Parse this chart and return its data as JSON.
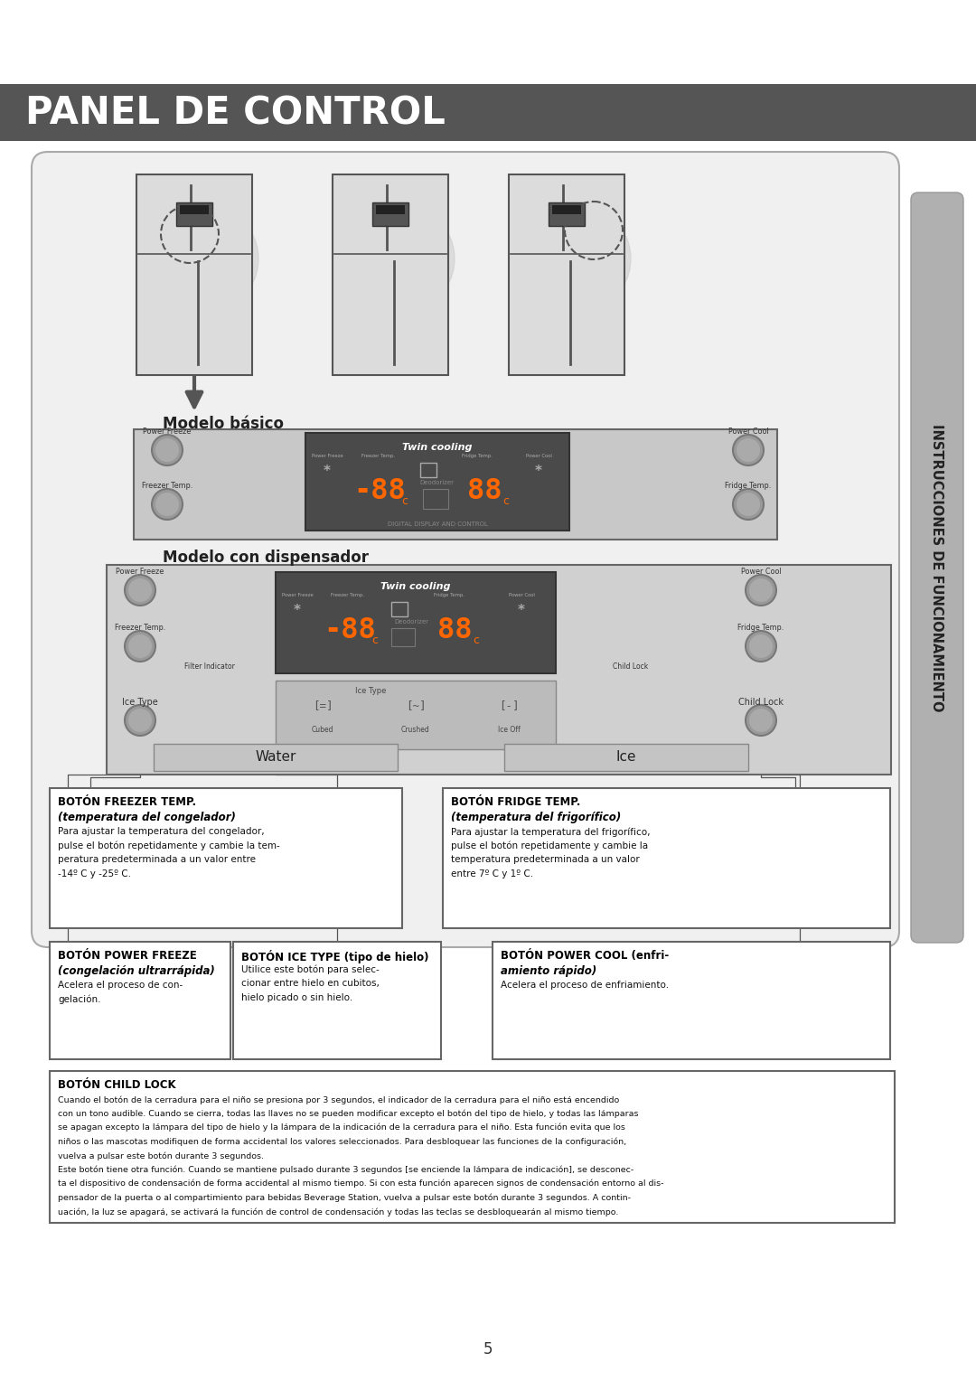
{
  "title": "PANEL DE CONTROL",
  "title_bg": "#555555",
  "title_color": "#ffffff",
  "page_bg": "#ffffff",
  "sidebar_text": "INSTRUCCIONES DE FUNCIONAMIENTO",
  "sidebar_bg": "#aaaaaa",
  "section1_label": "Modelo básico",
  "section2_label": "Modelo con dispensador",
  "twin_cooling_label": "Twin cooling",
  "digital_label": "DIGITAL DISPLAY AND CONTROL",
  "water_label": "Water",
  "ice_label": "Ice",
  "box1_title": "BOTÓN FREEZER TEMP.",
  "box1_subtitle": "(temperatura del congelador)",
  "box1_lines": [
    "Para ajustar la temperatura del congelador,",
    "pulse el botón repetidamente y cambie la tem-",
    "peratura predeterminada a un valor entre",
    "-14º C y -25º C."
  ],
  "box2_title": "BOTÓN FRIDGE TEMP.",
  "box2_subtitle": "(temperatura del frigorífico)",
  "box2_lines": [
    "Para ajustar la temperatura del frigorífico,",
    "pulse el botón repetidamente y cambie la",
    "temperatura predeterminada a un valor",
    "entre 7º C y 1º C."
  ],
  "box3_title": "BOTÓN POWER FREEZE",
  "box3_subtitle": "(congelación ultrarrápida)",
  "box3_lines": [
    "Acelera el proceso de con-",
    "gelación."
  ],
  "box4_title": "BOTÓN ICE TYPE (tipo de hielo)",
  "box4_lines": [
    "Utilice este botón para selec-",
    "cionar entre hielo en cubitos,",
    "hielo picado o sin hielo."
  ],
  "box5_title": "BOTÓN POWER COOL (enfri-",
  "box5_subtitle": "amiento rápido)",
  "box5_lines": [
    "Acelera el proceso de enfriamiento."
  ],
  "child_title": "BOTÓN CHILD LOCK",
  "child_lines": [
    "Cuando el botón de la cerradura para el niño se presiona por 3 segundos, el indicador de la cerradura para el niño está encendido",
    "con un tono audible. Cuando se cierra, todas las llaves no se pueden modificar excepto el botón del tipo de hielo, y todas las lámparas",
    "se apagan excepto la lámpara del tipo de hielo y la lámpara de la indicación de la cerradura para el niño. Esta función evita que los",
    "niños o las mascotas modifiquen de forma accidental los valores seleccionados. Para desbloquear las funciones de la configuración,",
    "vuelva a pulsar este botón durante 3 segundos.",
    "Este botón tiene otra función. Cuando se mantiene pulsado durante 3 segundos [se enciende la lámpara de indicación], se desconec-",
    "ta el dispositivo de condensación de forma accidental al mismo tiempo. Si con esta función aparecen signos de condensación entorno al dis-",
    "pensador de la puerta o al compartimiento para bebidas Beverage Station, vuelva a pulsar este botón durante 3 segundos. A contin-",
    "uación, la luz se apagará, se activará la función de control de condensación y todas las teclas se desbloquearán al mismo tiempo."
  ],
  "page_number": "5"
}
